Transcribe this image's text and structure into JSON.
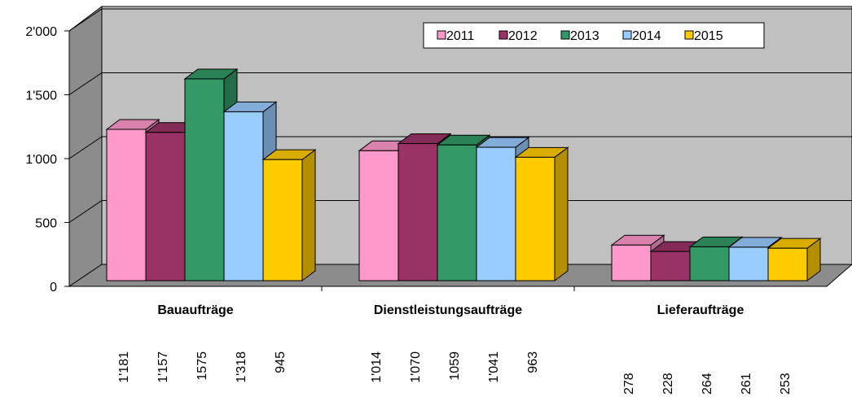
{
  "chart_data": {
    "type": "bar3d",
    "categories": [
      "Bauaufträge",
      "Dienstleistungsaufträge",
      "Lieferaufträge"
    ],
    "series": [
      {
        "name": "2011",
        "color": "#ff99cc",
        "values": [
          1181,
          1014,
          278
        ],
        "value_labels": [
          "1'181",
          "1'014",
          "278"
        ]
      },
      {
        "name": "2012",
        "color": "#993366",
        "values": [
          1157,
          1070,
          228
        ],
        "value_labels": [
          "1'157",
          "1'070",
          "228"
        ]
      },
      {
        "name": "2013",
        "color": "#339966",
        "values": [
          1575,
          1059,
          264
        ],
        "value_labels": [
          "1575",
          "1059",
          "264"
        ]
      },
      {
        "name": "2014",
        "color": "#99ccff",
        "values": [
          1318,
          1041,
          261
        ],
        "value_labels": [
          "1'318",
          "1'041",
          "261"
        ]
      },
      {
        "name": "2015",
        "color": "#ffcc00",
        "values": [
          945,
          963,
          253
        ],
        "value_labels": [
          "945",
          "963",
          "253"
        ]
      }
    ],
    "ylim": [
      0,
      2000
    ],
    "yticks": [
      0,
      500,
      {
        "value": 1000,
        "label": "1'000"
      },
      {
        "value": 1500,
        "label": "1'500"
      },
      {
        "value": 2000,
        "label": "2'000"
      }
    ],
    "grid": true,
    "legend": "top-right"
  }
}
